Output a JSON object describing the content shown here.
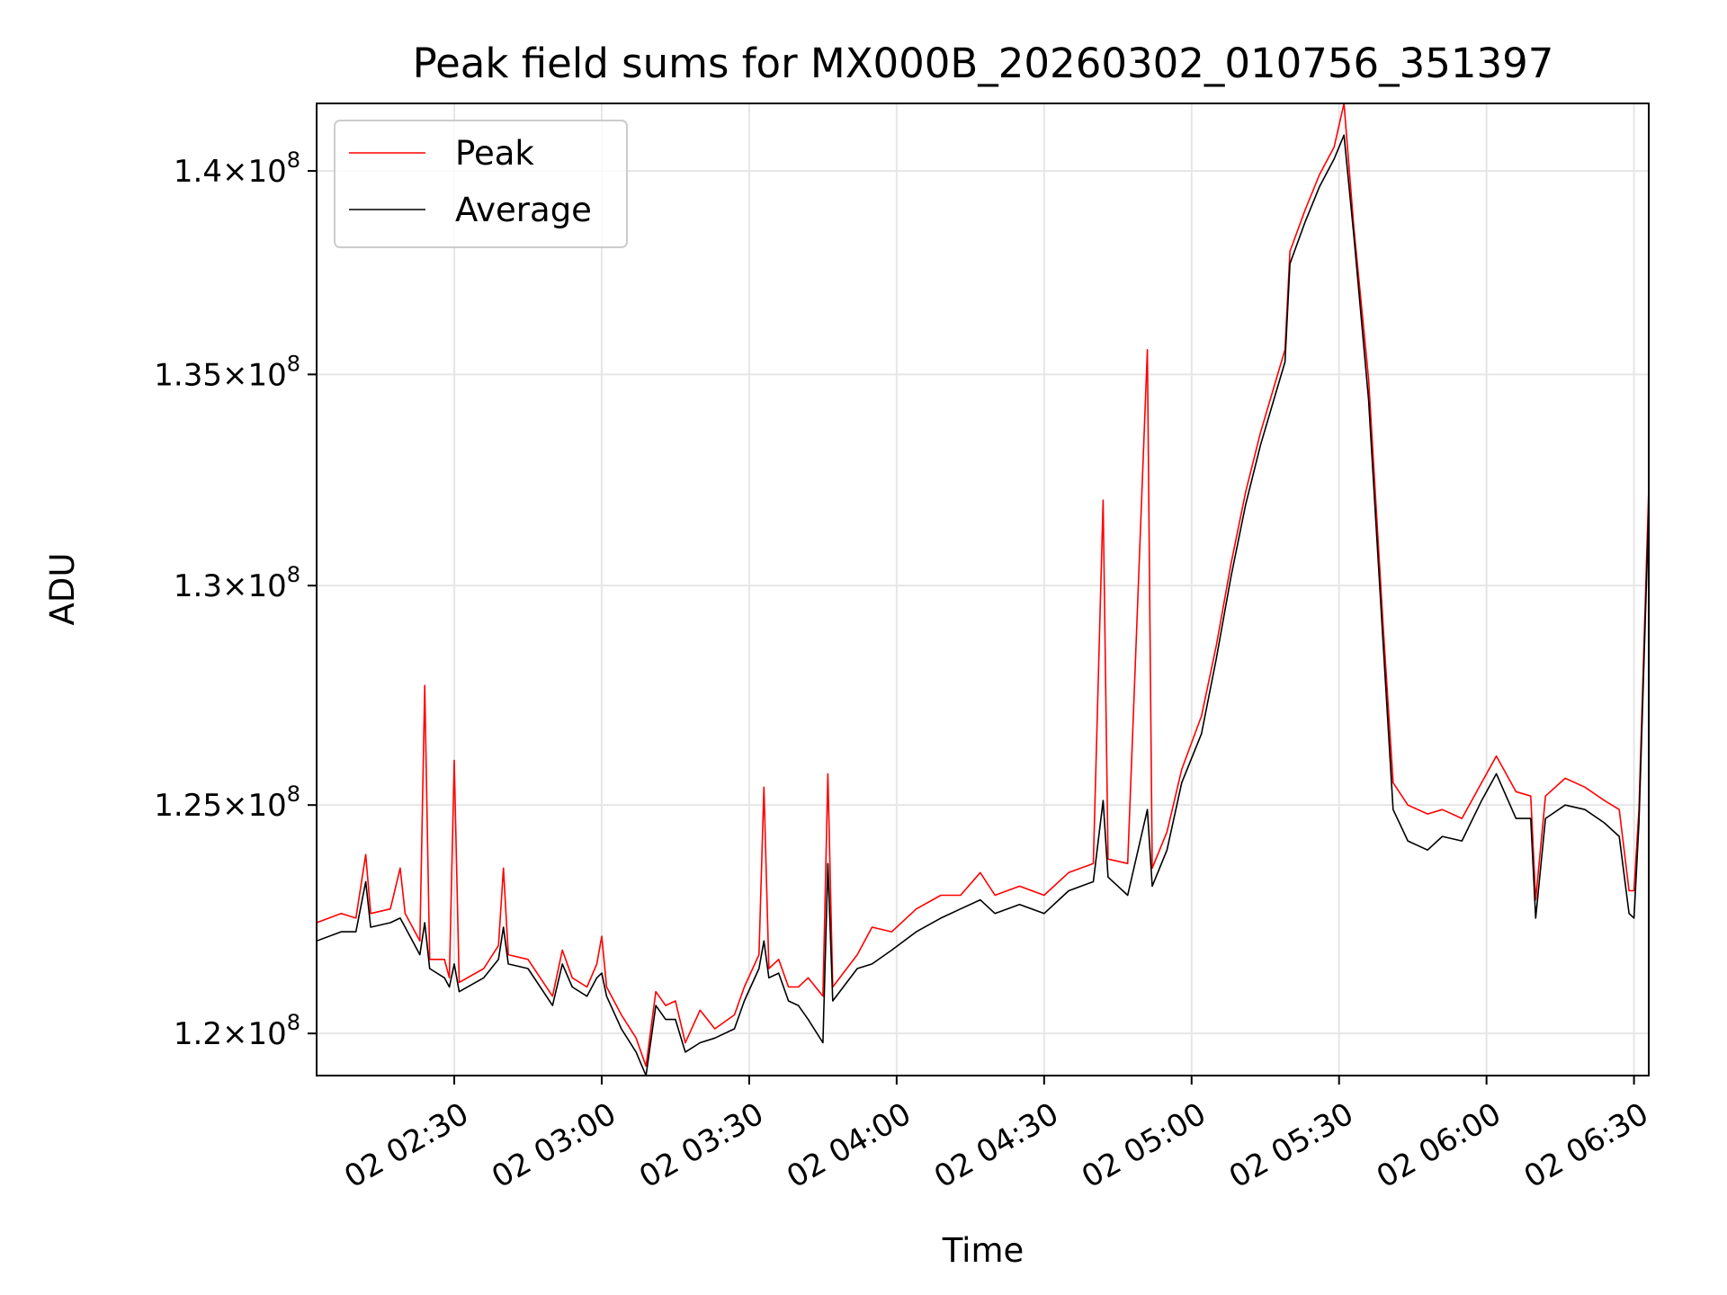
{
  "chart_data": {
    "type": "line",
    "title": "Peak field sums for MX000B_20260302_010756_351397",
    "xlabel": "Time",
    "ylabel": "ADU",
    "xlim": [
      "02:02",
      "06:33"
    ],
    "ylim": [
      119100000,
      141700000
    ],
    "y_scale": "log",
    "grid": true,
    "legend_position": "upper left",
    "x_ticks": [
      {
        "t": "02:30",
        "label": "02 02:30"
      },
      {
        "t": "03:00",
        "label": "02 03:00"
      },
      {
        "t": "03:30",
        "label": "02 03:30"
      },
      {
        "t": "04:00",
        "label": "02 04:00"
      },
      {
        "t": "04:30",
        "label": "02 04:30"
      },
      {
        "t": "05:00",
        "label": "02 05:00"
      },
      {
        "t": "05:30",
        "label": "02 05:30"
      },
      {
        "t": "06:00",
        "label": "02 06:00"
      },
      {
        "t": "06:30",
        "label": "02 06:30"
      }
    ],
    "y_ticks": [
      {
        "value": 120000000,
        "mantissa": "1.2",
        "exp": "8"
      },
      {
        "value": 125000000,
        "mantissa": "1.25",
        "exp": "8"
      },
      {
        "value": 130000000,
        "mantissa": "1.3",
        "exp": "8"
      },
      {
        "value": 135000000,
        "mantissa": "1.35",
        "exp": "8"
      },
      {
        "value": 140000000,
        "mantissa": "1.4",
        "exp": "8"
      }
    ],
    "series": [
      {
        "name": "Peak",
        "color": "#ff0000",
        "points": [
          [
            "02:02",
            122.4
          ],
          [
            "02:07",
            122.6
          ],
          [
            "02:10",
            122.5
          ],
          [
            "02:12",
            123.9
          ],
          [
            "02:13",
            122.6
          ],
          [
            "02:17",
            122.7
          ],
          [
            "02:19",
            123.6
          ],
          [
            "02:20",
            122.6
          ],
          [
            "02:23",
            122.0
          ],
          [
            "02:24",
            127.7
          ],
          [
            "02:25",
            121.6
          ],
          [
            "02:28",
            121.6
          ],
          [
            "02:29",
            121.2
          ],
          [
            "02:30",
            126.0
          ],
          [
            "02:31",
            121.1
          ],
          [
            "02:36",
            121.4
          ],
          [
            "02:39",
            121.9
          ],
          [
            "02:40",
            123.6
          ],
          [
            "02:41",
            121.7
          ],
          [
            "02:45",
            121.6
          ],
          [
            "02:50",
            120.8
          ],
          [
            "02:52",
            121.8
          ],
          [
            "02:54",
            121.2
          ],
          [
            "02:57",
            121.0
          ],
          [
            "02:59",
            121.5
          ],
          [
            "03:00",
            122.1
          ],
          [
            "03:01",
            121.0
          ],
          [
            "03:04",
            120.4
          ],
          [
            "03:07",
            119.9
          ],
          [
            "03:09",
            119.3
          ],
          [
            "03:11",
            120.9
          ],
          [
            "03:13",
            120.6
          ],
          [
            "03:15",
            120.7
          ],
          [
            "03:17",
            119.8
          ],
          [
            "03:20",
            120.5
          ],
          [
            "03:23",
            120.1
          ],
          [
            "03:27",
            120.4
          ],
          [
            "03:29",
            121.0
          ],
          [
            "03:32",
            121.7
          ],
          [
            "03:33",
            125.4
          ],
          [
            "03:34",
            121.4
          ],
          [
            "03:36",
            121.6
          ],
          [
            "03:38",
            121.0
          ],
          [
            "03:40",
            121.0
          ],
          [
            "03:42",
            121.2
          ],
          [
            "03:45",
            120.8
          ],
          [
            "03:46",
            125.7
          ],
          [
            "03:47",
            121.0
          ],
          [
            "03:52",
            121.7
          ],
          [
            "03:55",
            122.3
          ],
          [
            "03:59",
            122.2
          ],
          [
            "04:04",
            122.7
          ],
          [
            "04:09",
            123.0
          ],
          [
            "04:13",
            123.0
          ],
          [
            "04:17",
            123.5
          ],
          [
            "04:20",
            123.0
          ],
          [
            "04:25",
            123.2
          ],
          [
            "04:30",
            123.0
          ],
          [
            "04:35",
            123.5
          ],
          [
            "04:40",
            123.7
          ],
          [
            "04:42",
            132.0
          ],
          [
            "04:43",
            123.8
          ],
          [
            "04:47",
            123.7
          ],
          [
            "04:51",
            135.6
          ],
          [
            "04:52",
            123.6
          ],
          [
            "04:55",
            124.4
          ],
          [
            "04:58",
            125.8
          ],
          [
            "05:02",
            127.0
          ],
          [
            "05:05",
            128.6
          ],
          [
            "05:08",
            130.5
          ],
          [
            "05:11",
            132.2
          ],
          [
            "05:14",
            133.6
          ],
          [
            "05:17",
            134.8
          ],
          [
            "05:19",
            135.6
          ],
          [
            "05:20",
            138.0
          ],
          [
            "05:23",
            139.0
          ],
          [
            "05:26",
            139.9
          ],
          [
            "05:29",
            140.6
          ],
          [
            "05:31",
            141.7
          ],
          [
            "05:33",
            138.6
          ],
          [
            "05:36",
            134.9
          ],
          [
            "05:39",
            129.0
          ],
          [
            "05:41",
            125.5
          ],
          [
            "05:44",
            125.0
          ],
          [
            "05:48",
            124.8
          ],
          [
            "05:51",
            124.9
          ],
          [
            "05:55",
            124.7
          ],
          [
            "05:59",
            125.5
          ],
          [
            "06:02",
            126.1
          ],
          [
            "06:06",
            125.3
          ],
          [
            "06:09",
            125.2
          ],
          [
            "06:10",
            122.9
          ],
          [
            "06:12",
            125.2
          ],
          [
            "06:16",
            125.6
          ],
          [
            "06:20",
            125.4
          ],
          [
            "06:24",
            125.1
          ],
          [
            "06:27",
            124.9
          ],
          [
            "06:29",
            123.1
          ],
          [
            "06:30",
            123.1
          ],
          [
            "06:31",
            124.9
          ],
          [
            "06:33",
            132.3
          ]
        ]
      },
      {
        "name": "Average",
        "color": "#000000",
        "points": [
          [
            "02:02",
            122.0
          ],
          [
            "02:07",
            122.2
          ],
          [
            "02:10",
            122.2
          ],
          [
            "02:12",
            123.3
          ],
          [
            "02:13",
            122.3
          ],
          [
            "02:17",
            122.4
          ],
          [
            "02:19",
            122.5
          ],
          [
            "02:20",
            122.3
          ],
          [
            "02:23",
            121.7
          ],
          [
            "02:24",
            122.4
          ],
          [
            "02:25",
            121.4
          ],
          [
            "02:28",
            121.2
          ],
          [
            "02:29",
            121.0
          ],
          [
            "02:30",
            121.5
          ],
          [
            "02:31",
            120.9
          ],
          [
            "02:36",
            121.2
          ],
          [
            "02:39",
            121.6
          ],
          [
            "02:40",
            122.3
          ],
          [
            "02:41",
            121.5
          ],
          [
            "02:45",
            121.4
          ],
          [
            "02:50",
            120.6
          ],
          [
            "02:52",
            121.5
          ],
          [
            "02:54",
            121.0
          ],
          [
            "02:57",
            120.8
          ],
          [
            "02:59",
            121.2
          ],
          [
            "03:00",
            121.3
          ],
          [
            "03:01",
            120.8
          ],
          [
            "03:04",
            120.1
          ],
          [
            "03:07",
            119.6
          ],
          [
            "03:09",
            119.1
          ],
          [
            "03:11",
            120.6
          ],
          [
            "03:13",
            120.3
          ],
          [
            "03:15",
            120.3
          ],
          [
            "03:17",
            119.6
          ],
          [
            "03:20",
            119.8
          ],
          [
            "03:23",
            119.9
          ],
          [
            "03:27",
            120.1
          ],
          [
            "03:29",
            120.7
          ],
          [
            "03:32",
            121.4
          ],
          [
            "03:33",
            122.0
          ],
          [
            "03:34",
            121.2
          ],
          [
            "03:36",
            121.3
          ],
          [
            "03:38",
            120.7
          ],
          [
            "03:40",
            120.6
          ],
          [
            "03:42",
            120.3
          ],
          [
            "03:45",
            119.8
          ],
          [
            "03:46",
            123.7
          ],
          [
            "03:47",
            120.7
          ],
          [
            "03:52",
            121.4
          ],
          [
            "03:55",
            121.5
          ],
          [
            "03:59",
            121.8
          ],
          [
            "04:04",
            122.2
          ],
          [
            "04:09",
            122.5
          ],
          [
            "04:13",
            122.7
          ],
          [
            "04:17",
            122.9
          ],
          [
            "04:20",
            122.6
          ],
          [
            "04:25",
            122.8
          ],
          [
            "04:30",
            122.6
          ],
          [
            "04:35",
            123.1
          ],
          [
            "04:40",
            123.3
          ],
          [
            "04:42",
            125.1
          ],
          [
            "04:43",
            123.4
          ],
          [
            "04:47",
            123.0
          ],
          [
            "04:51",
            124.9
          ],
          [
            "04:52",
            123.2
          ],
          [
            "04:55",
            124.0
          ],
          [
            "04:58",
            125.5
          ],
          [
            "05:02",
            126.6
          ],
          [
            "05:05",
            128.3
          ],
          [
            "05:08",
            130.2
          ],
          [
            "05:11",
            131.9
          ],
          [
            "05:14",
            133.3
          ],
          [
            "05:17",
            134.5
          ],
          [
            "05:19",
            135.3
          ],
          [
            "05:20",
            137.7
          ],
          [
            "05:23",
            138.7
          ],
          [
            "05:26",
            139.6
          ],
          [
            "05:29",
            140.3
          ],
          [
            "05:31",
            140.9
          ],
          [
            "05:33",
            138.4
          ],
          [
            "05:36",
            134.4
          ],
          [
            "05:39",
            128.6
          ],
          [
            "05:41",
            124.9
          ],
          [
            "05:44",
            124.2
          ],
          [
            "05:48",
            124.0
          ],
          [
            "05:51",
            124.3
          ],
          [
            "05:55",
            124.2
          ],
          [
            "05:59",
            125.1
          ],
          [
            "06:02",
            125.7
          ],
          [
            "06:06",
            124.7
          ],
          [
            "06:09",
            124.7
          ],
          [
            "06:10",
            122.5
          ],
          [
            "06:12",
            124.7
          ],
          [
            "06:16",
            125.0
          ],
          [
            "06:20",
            124.9
          ],
          [
            "06:24",
            124.6
          ],
          [
            "06:27",
            124.3
          ],
          [
            "06:29",
            122.6
          ],
          [
            "06:30",
            122.5
          ],
          [
            "06:31",
            124.6
          ],
          [
            "06:33",
            131.8
          ]
        ]
      }
    ],
    "y_unit_note": "point y values in millions of ADU"
  }
}
